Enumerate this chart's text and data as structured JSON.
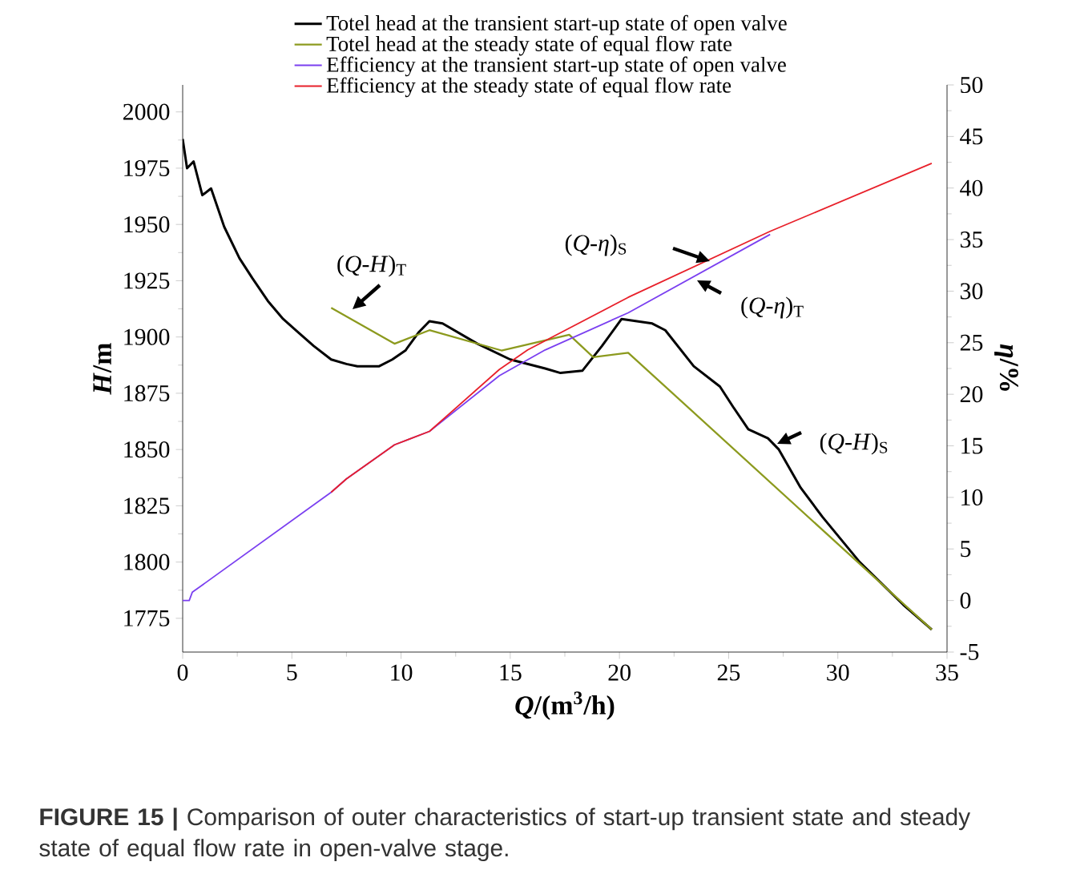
{
  "chart_data": {
    "type": "line",
    "xlabel": "*Q*/(m$^{3}$/h)",
    "ylabel": "*H*/m",
    "y2label": "*η*/%",
    "xlim": [
      0,
      35
    ],
    "xticks": [
      0,
      5,
      10,
      15,
      20,
      25,
      30,
      35
    ],
    "ylim": [
      1760,
      2012
    ],
    "yticks": [
      1775,
      1800,
      1825,
      1850,
      1875,
      1900,
      1925,
      1950,
      1975,
      2000
    ],
    "y2lim": [
      -5,
      50
    ],
    "y2ticks": [
      -5,
      0,
      5,
      10,
      15,
      20,
      25,
      30,
      35,
      40,
      45,
      50
    ],
    "legend": "top",
    "line_style": "solid",
    "series": [
      {
        "name": "Totel head at the transient start-up state of open valve",
        "color": "#000000",
        "x": [
          0,
          0.2,
          0.5,
          0.9,
          1.3,
          1.9,
          2.6,
          3.2,
          3.9,
          4.6,
          5.3,
          6.0,
          6.8,
          7.5,
          8.0,
          9.0,
          9.6,
          10.2,
          10.8,
          11.3,
          11.9,
          13.5,
          15.0,
          16.6,
          17.3,
          18.3,
          19.2,
          20.1,
          21.5,
          22.1,
          23.4,
          24.6,
          25.2,
          25.9,
          26.8,
          27.3,
          28.3,
          29.3,
          31.0,
          33.0,
          34.3
        ],
        "values": [
          1988,
          1975,
          1978,
          1963,
          1966,
          1949,
          1935,
          1926,
          1916,
          1908,
          1902,
          1896,
          1890,
          1888,
          1887,
          1887,
          1890,
          1894,
          1902,
          1907,
          1906,
          1897,
          1890,
          1886,
          1884,
          1885,
          1896,
          1908,
          1906,
          1903,
          1887,
          1878,
          1869,
          1859,
          1855,
          1850,
          1833,
          1820,
          1800,
          1781,
          1770
        ]
      },
      {
        "name": "Totel head at the steady state of equal flow rate",
        "color": "#8c9a1e",
        "x": [
          6.8,
          9.7,
          11.3,
          14.6,
          17.7,
          18.8,
          20.4,
          34.3
        ],
        "values": [
          1913,
          1897,
          1903,
          1894,
          1901,
          1891,
          1893,
          1770
        ]
      },
      {
        "name": "Efficiency at the transient start-up state of open valve",
        "color": "#7a3ff0",
        "axis": "y2",
        "x": [
          0,
          0.3,
          0.44,
          6.8,
          7.5,
          9.7,
          11.3,
          14.5,
          16.6,
          20.4,
          26.9
        ],
        "values": [
          0,
          0,
          0.8,
          10.5,
          11.8,
          15.1,
          16.4,
          21.8,
          24.3,
          27.9,
          35.5
        ]
      },
      {
        "name": "Efficiency at the steady state of equal flow rate",
        "color": "#e8202a",
        "axis": "y2",
        "x": [
          6.8,
          7.5,
          9.7,
          11.3,
          14.5,
          15.8,
          20.4,
          26.9,
          34.3
        ],
        "values": [
          10.5,
          11.8,
          15.1,
          16.4,
          22.4,
          24.3,
          29.4,
          35.8,
          42.4
        ]
      }
    ],
    "annotations": [
      "(*Q*-*H*)$_{T}$",
      "(*Q*-*η*)$_{S}$",
      "(*Q*-*η*)$_{T}$",
      "(*Q*-*H*)$_{S}$",
      "**FIGURE 15 |** Comparison of outer characteristics of start-up transient state and steady state of equal flow rate in open-valve stage."
    ]
  }
}
